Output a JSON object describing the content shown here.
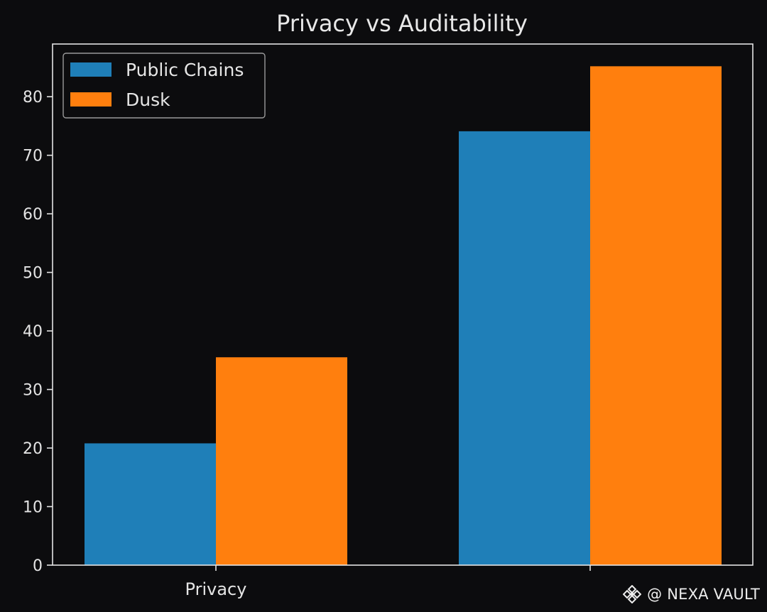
{
  "chart_data": {
    "type": "bar",
    "title": "Privacy vs Auditability",
    "categories": [
      "Privacy",
      ""
    ],
    "series": [
      {
        "name": "Public Chains",
        "values": [
          20.8,
          74.1
        ],
        "color": "#1f7fb8"
      },
      {
        "name": "Dusk",
        "values": [
          35.5,
          85.2
        ],
        "color": "#ff7f0e"
      }
    ],
    "xlabel": "",
    "ylabel": "",
    "ylim": [
      0,
      89
    ],
    "yticks": [
      0,
      10,
      20,
      30,
      40,
      50,
      60,
      70,
      80
    ],
    "grid": false,
    "legend_position": "top-left"
  },
  "watermark": {
    "text": "@ NEXA VAULT",
    "icon": "binance-logo-icon"
  }
}
